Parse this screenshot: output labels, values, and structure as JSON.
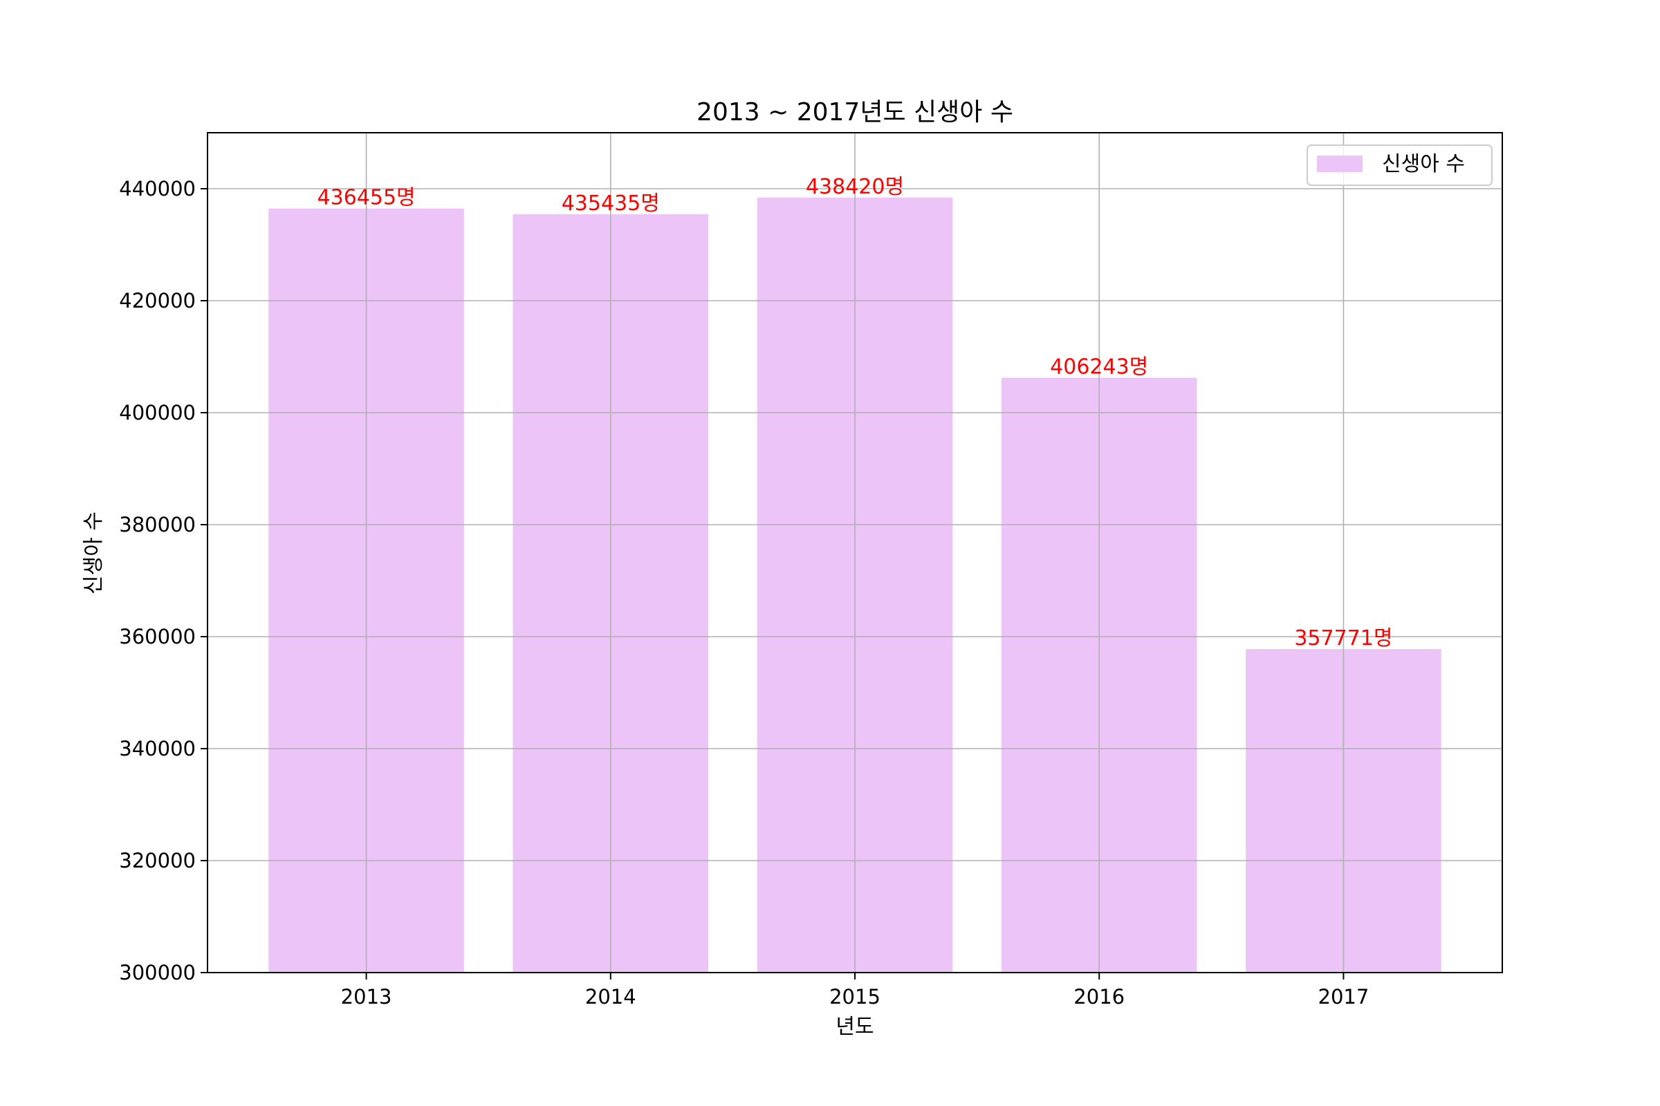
{
  "chart_data": {
    "type": "bar",
    "title": "2013 ~ 2017년도 신생아 수",
    "xlabel": "년도",
    "ylabel": "신생아 수",
    "categories": [
      "2013",
      "2014",
      "2015",
      "2016",
      "2017"
    ],
    "series": [
      {
        "name": "신생아 수",
        "values": [
          436455,
          435435,
          438420,
          406243,
          357771
        ]
      }
    ],
    "data_labels": [
      "436455명",
      "435435명",
      "438420명",
      "406243명",
      "357771명"
    ],
    "ylim": [
      300000,
      450000
    ],
    "yticks": [
      300000,
      320000,
      340000,
      360000,
      380000,
      400000,
      420000,
      440000
    ],
    "ytick_labels": [
      "300000",
      "320000",
      "340000",
      "360000",
      "380000",
      "400000",
      "420000",
      "440000"
    ],
    "grid": true,
    "legend_position": "top-right",
    "colors": {
      "bar": "#ecc4f8",
      "data_label": "#ff0000",
      "grid": "#b0b0b0",
      "text": "#000000"
    }
  }
}
